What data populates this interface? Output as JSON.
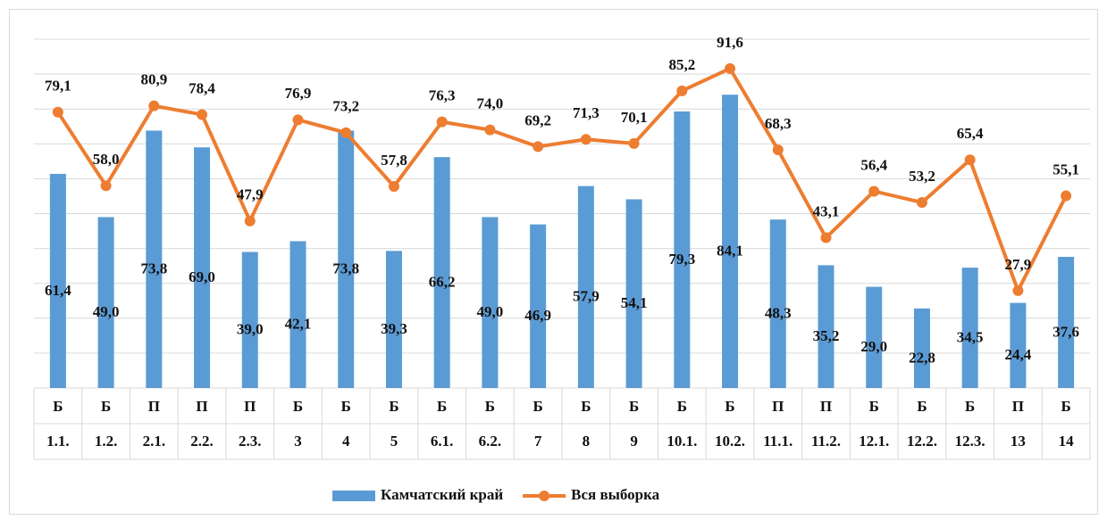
{
  "chart_data": {
    "type": "bar_line",
    "categories": [
      [
        "Б",
        "1.1."
      ],
      [
        "Б",
        "1.2."
      ],
      [
        "П",
        "2.1."
      ],
      [
        "П",
        "2.2."
      ],
      [
        "П",
        "2.3."
      ],
      [
        "Б",
        "3"
      ],
      [
        "Б",
        "4"
      ],
      [
        "Б",
        "5"
      ],
      [
        "Б",
        "6.1."
      ],
      [
        "Б",
        "6.2."
      ],
      [
        "Б",
        "7"
      ],
      [
        "Б",
        "8"
      ],
      [
        "Б",
        "9"
      ],
      [
        "Б",
        "10.1."
      ],
      [
        "Б",
        "10.2."
      ],
      [
        "П",
        "11.1."
      ],
      [
        "П",
        "11.2."
      ],
      [
        "Б",
        "12.1."
      ],
      [
        "Б",
        "12.2."
      ],
      [
        "Б",
        "12.3."
      ],
      [
        "П",
        "13"
      ],
      [
        "Б",
        "14"
      ]
    ],
    "series": [
      {
        "name": "Камчатский край",
        "type": "bar",
        "color": "#5b9bd5",
        "values": [
          61.4,
          49.0,
          73.8,
          69.0,
          39.0,
          42.1,
          73.8,
          39.3,
          66.2,
          49.0,
          46.9,
          57.9,
          54.1,
          79.3,
          84.1,
          48.3,
          35.2,
          29.0,
          22.8,
          34.5,
          24.4,
          37.6
        ],
        "value_labels": [
          "61,4",
          "49,0",
          "73,8",
          "69,0",
          "39,0",
          "42,1",
          "73,8",
          "39,3",
          "66,2",
          "49,0",
          "46,9",
          "57,9",
          "54,1",
          "79,3",
          "84,1",
          "48,3",
          "35,2",
          "29,0",
          "22,8",
          "34,5",
          "24,4",
          "37,6"
        ]
      },
      {
        "name": "Вся выборка",
        "type": "line",
        "color": "#ed7d31",
        "values": [
          79.1,
          58.0,
          80.9,
          78.4,
          47.9,
          76.9,
          73.2,
          57.8,
          76.3,
          74.0,
          69.2,
          71.3,
          70.1,
          85.2,
          91.6,
          68.3,
          43.1,
          56.4,
          53.2,
          65.4,
          27.9,
          55.1
        ],
        "value_labels": [
          "79,1",
          "58,0",
          "80,9",
          "78,4",
          "47,9",
          "76,9",
          "73,2",
          "57,8",
          "76,3",
          "74,0",
          "69,2",
          "71,3",
          "70,1",
          "85,2",
          "91,6",
          "68,3",
          "43,1",
          "56,4",
          "53,2",
          "65,4",
          "27,9",
          "55,1"
        ]
      }
    ],
    "ylim": [
      0,
      100
    ],
    "yticks": [
      0,
      10,
      20,
      30,
      40,
      50,
      60,
      70,
      80,
      90,
      100
    ],
    "grid": true,
    "legend": "bottom"
  }
}
